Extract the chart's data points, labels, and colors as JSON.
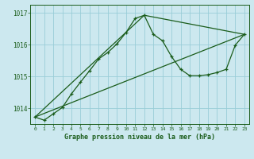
{
  "title": "Graphe pression niveau de la mer (hPa)",
  "background_color": "#cce8ef",
  "grid_color": "#99cdd8",
  "line_color": "#1a5c1a",
  "xlim": [
    -0.5,
    23.5
  ],
  "ylim": [
    1013.5,
    1017.25
  ],
  "yticks": [
    1014,
    1015,
    1016,
    1017
  ],
  "ytick_labels": [
    "1014",
    "1015",
    "1016",
    "1017"
  ],
  "xticks": [
    0,
    1,
    2,
    3,
    4,
    5,
    6,
    7,
    8,
    9,
    10,
    11,
    12,
    13,
    14,
    15,
    16,
    17,
    18,
    19,
    20,
    21,
    22,
    23
  ],
  "series1_x": [
    0,
    1,
    2,
    3,
    4,
    5,
    6,
    7,
    8,
    9,
    10,
    11,
    12,
    13,
    14,
    15,
    16,
    17,
    18,
    19,
    20,
    21,
    22,
    23
  ],
  "series1_y": [
    1013.72,
    1013.62,
    1013.82,
    1014.02,
    1014.45,
    1014.82,
    1015.18,
    1015.55,
    1015.75,
    1016.02,
    1016.38,
    1016.82,
    1016.92,
    1016.32,
    1016.12,
    1015.62,
    1015.22,
    1015.02,
    1015.02,
    1015.05,
    1015.12,
    1015.22,
    1015.98,
    1016.32
  ],
  "series2_x": [
    0,
    23
  ],
  "series2_y": [
    1013.72,
    1016.32
  ],
  "series3_x": [
    0,
    12,
    23
  ],
  "series3_y": [
    1013.72,
    1016.92,
    1016.32
  ]
}
